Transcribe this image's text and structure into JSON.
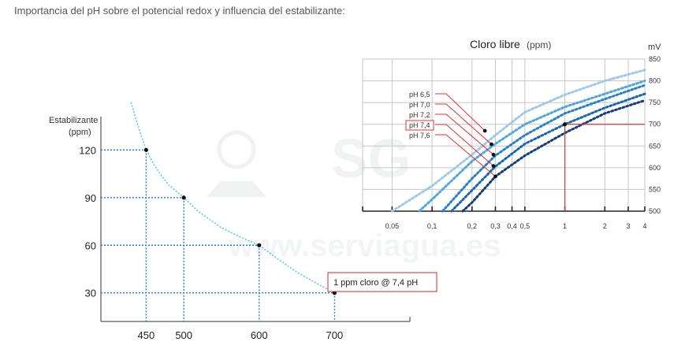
{
  "page": {
    "title": "Importancia del pH sobre el potencial redox y influencia del estabilizante:"
  },
  "watermark": {
    "logo_text": "SG",
    "url_text": "www.serviagua.es"
  },
  "chart_data": [
    {
      "type": "line",
      "ylabel_line1": "Estabilizante",
      "ylabel_line2": "(ppm)",
      "xlabel": "",
      "x_ticks": [
        450,
        500,
        600,
        700
      ],
      "y_ticks": [
        120,
        90,
        60,
        30
      ],
      "xlim": [
        390,
        800
      ],
      "ylim": [
        12,
        140
      ],
      "curve_color": "#5cc6e8",
      "guide_color": "#1e7fd0",
      "series": [
        {
          "x": [
            430,
            440,
            450,
            460,
            470,
            480,
            500,
            520,
            550,
            580,
            600,
            620,
            650,
            680,
            700
          ],
          "y": [
            150,
            134,
            120,
            111,
            104,
            98,
            90,
            81,
            71,
            64,
            60,
            53,
            43,
            35,
            30
          ]
        }
      ],
      "highlight_points": [
        {
          "x": 450,
          "y": 120
        },
        {
          "x": 500,
          "y": 90
        },
        {
          "x": 600,
          "y": 60
        },
        {
          "x": 700,
          "y": 30
        }
      ],
      "annotation": {
        "text": "1 ppm cloro   @ 7,4 pH",
        "border_color": "#d9242b"
      }
    },
    {
      "type": "line",
      "title": "Cloro libre",
      "title_unit": "(ppm)",
      "xlabel": "",
      "ylabel": "mV",
      "x_scale": "log",
      "xlim": [
        0.03,
        4
      ],
      "ylim": [
        500,
        850
      ],
      "x_ticks": [
        0.05,
        0.1,
        0.2,
        0.3,
        0.4,
        0.5,
        1,
        2,
        3,
        4
      ],
      "x_tick_labels": [
        "0,05",
        "0,1",
        "0,2",
        "0,3",
        "0,4",
        "0,5",
        "1",
        "2",
        "3",
        "4"
      ],
      "y_ticks": [
        500,
        550,
        600,
        650,
        700,
        750,
        800,
        850
      ],
      "grid": true,
      "series": [
        {
          "name": "pH 6,5",
          "color": "#9cc8ec",
          "x": [
            0.05,
            0.1,
            0.2,
            0.3,
            0.5,
            1,
            2,
            4
          ],
          "y": [
            500,
            558,
            630,
            675,
            728,
            768,
            800,
            825
          ]
        },
        {
          "name": "pH 7,0",
          "color": "#4ea6dc",
          "x": [
            0.08,
            0.1,
            0.2,
            0.3,
            0.5,
            1,
            2,
            4
          ],
          "y": [
            500,
            527,
            615,
            655,
            700,
            740,
            770,
            800
          ]
        },
        {
          "name": "pH 7,2",
          "color": "#2682c8",
          "x": [
            0.12,
            0.2,
            0.3,
            0.5,
            1,
            2,
            4
          ],
          "y": [
            500,
            575,
            628,
            675,
            725,
            758,
            790
          ]
        },
        {
          "name": "pH 7,4",
          "color": "#1767ad",
          "x": [
            0.14,
            0.2,
            0.3,
            0.5,
            1,
            2,
            4
          ],
          "y": [
            500,
            548,
            603,
            655,
            700,
            738,
            770
          ]
        },
        {
          "name": "pH 7,6",
          "color": "#123f78",
          "x": [
            0.17,
            0.2,
            0.3,
            0.5,
            1,
            2,
            4
          ],
          "y": [
            500,
            520,
            580,
            628,
            680,
            725,
            755
          ]
        }
      ],
      "marker_points": [
        {
          "x": 0.25,
          "y": 685
        },
        {
          "x": 0.28,
          "y": 654
        },
        {
          "x": 0.29,
          "y": 630
        },
        {
          "x": 0.29,
          "y": 604
        },
        {
          "x": 0.3,
          "y": 580
        }
      ],
      "reference_point": {
        "x": 1,
        "y": 700,
        "color": "#e03036"
      },
      "highlight_label": "pH 7,4"
    }
  ]
}
